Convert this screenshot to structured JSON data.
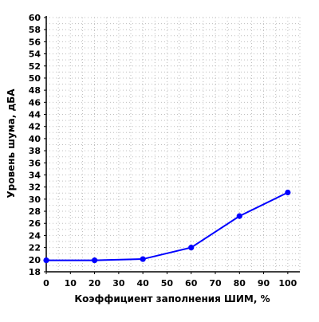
{
  "chart_data": {
    "type": "line",
    "x": [
      0,
      20,
      40,
      60,
      80,
      100
    ],
    "series": [
      {
        "name": "",
        "values": [
          19.9,
          19.9,
          20.1,
          22.0,
          27.2,
          31.1
        ],
        "color": "#0000ff"
      }
    ],
    "xlabel": "Коэффициент заполнения ШИМ, %",
    "ylabel": "Уровень шума, дБА",
    "xlim": [
      0,
      105
    ],
    "ylim": [
      18,
      60
    ],
    "xticks": [
      0,
      10,
      20,
      30,
      40,
      50,
      60,
      70,
      80,
      90,
      100
    ],
    "yticks": [
      18,
      20,
      22,
      24,
      26,
      28,
      30,
      32,
      34,
      36,
      38,
      40,
      42,
      44,
      46,
      48,
      50,
      52,
      54,
      56,
      58,
      60
    ],
    "grid": "dotted",
    "legend": "none",
    "colors": {
      "line": "#0000ff",
      "grid": "#bdbdbd",
      "axis": "#000000"
    }
  }
}
